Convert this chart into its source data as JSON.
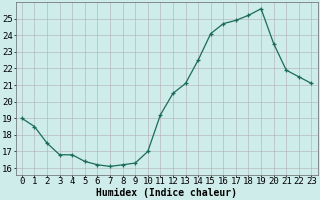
{
  "x": [
    0,
    1,
    2,
    3,
    4,
    5,
    6,
    7,
    8,
    9,
    10,
    11,
    12,
    13,
    14,
    15,
    16,
    17,
    18,
    19,
    20,
    21,
    22,
    23
  ],
  "y": [
    19.0,
    18.5,
    17.5,
    16.8,
    16.8,
    16.4,
    16.2,
    16.1,
    16.2,
    16.3,
    17.0,
    19.2,
    20.5,
    21.1,
    22.5,
    24.1,
    24.7,
    24.9,
    25.2,
    25.6,
    23.5,
    21.9,
    21.5,
    21.1
  ],
  "line_color": "#1a6b5a",
  "marker": "+",
  "marker_size": 3,
  "bg_color": "#ceecea",
  "grid_color": "#b0b0b0",
  "xlabel": "Humidex (Indice chaleur)",
  "ylabel_ticks": [
    16,
    17,
    18,
    19,
    20,
    21,
    22,
    23,
    24,
    25
  ],
  "xlim": [
    -0.5,
    23.5
  ],
  "ylim": [
    15.6,
    26.0
  ],
  "xlabel_fontsize": 7,
  "tick_fontsize": 6.5
}
